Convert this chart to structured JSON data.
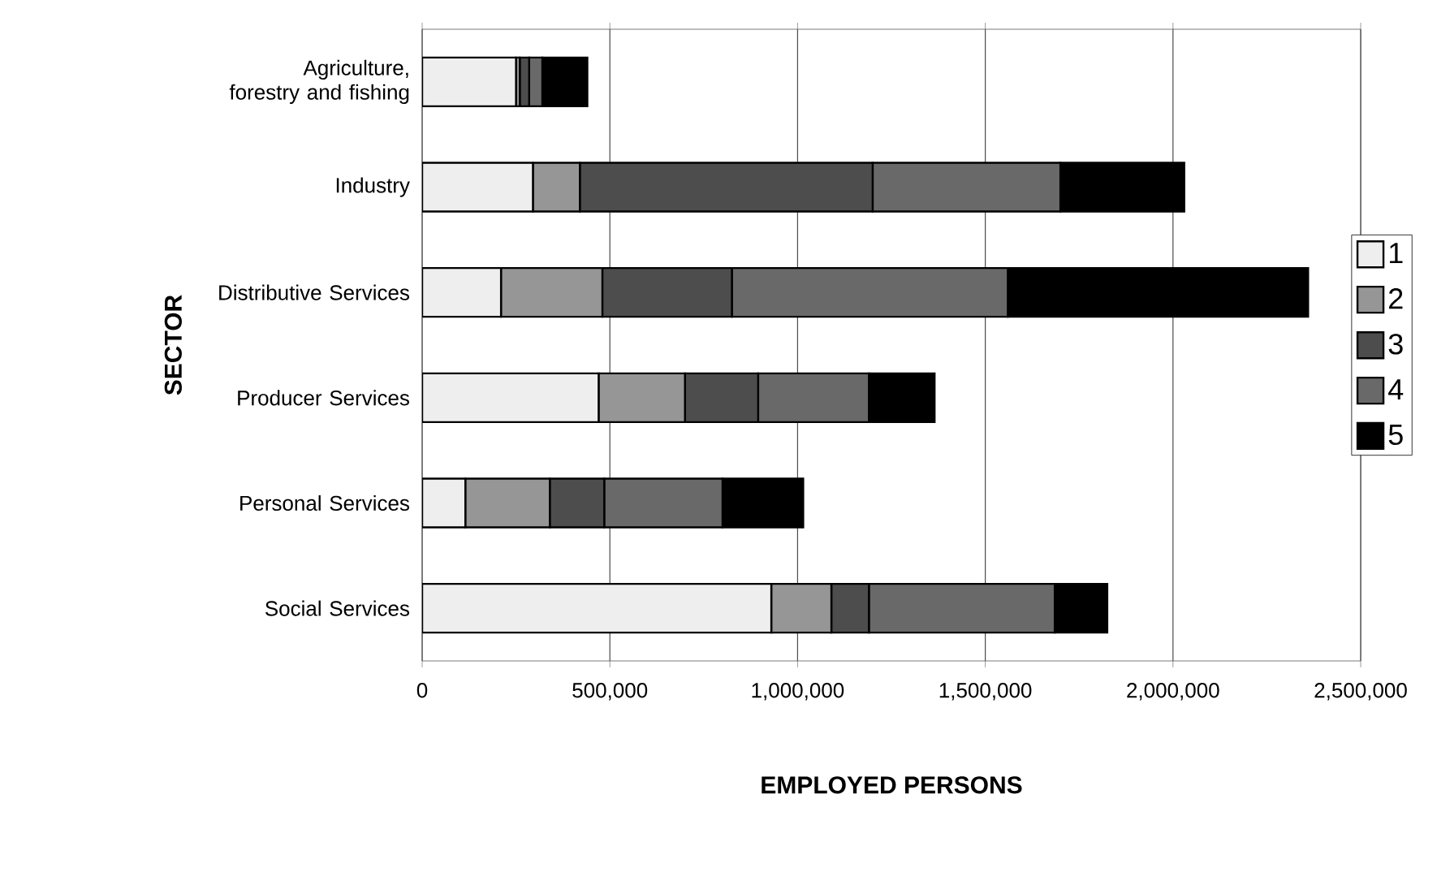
{
  "chart_data": {
    "type": "bar",
    "orientation": "horizontal",
    "stacked": true,
    "xlabel": "EMPLOYED PERSONS",
    "ylabel": "SECTOR",
    "categories": [
      "Agriculture, forestry and fishing",
      "Industry",
      "Distributive Services",
      "Producer Services",
      "Personal Services",
      "Social Services"
    ],
    "series": [
      {
        "name": "1",
        "color": "#eeeeee",
        "values": [
          250000,
          295000,
          210000,
          470000,
          115000,
          930000
        ]
      },
      {
        "name": "2",
        "color": "#969696",
        "values": [
          10000,
          125000,
          270000,
          230000,
          225000,
          160000
        ]
      },
      {
        "name": "3",
        "color": "#4d4d4d",
        "values": [
          25000,
          780000,
          345000,
          195000,
          145000,
          100000
        ]
      },
      {
        "name": "4",
        "color": "#696969",
        "values": [
          35000,
          500000,
          735000,
          295000,
          315000,
          495000
        ]
      },
      {
        "name": "5",
        "color": "#000000",
        "values": [
          120000,
          330000,
          800000,
          175000,
          215000,
          140000
        ]
      }
    ],
    "xlim": [
      0,
      2500000
    ],
    "xticks": [
      0,
      {
        "value": 500000,
        "label": "500,000"
      },
      {
        "value": 1000000,
        "label": "1,000,000"
      },
      {
        "value": 1500000,
        "label": "1,500,000"
      },
      {
        "value": 2000000,
        "label": "2,000,000"
      },
      {
        "value": 2500000,
        "label": "2,500,000"
      }
    ],
    "grid": "x",
    "legend": "right"
  }
}
